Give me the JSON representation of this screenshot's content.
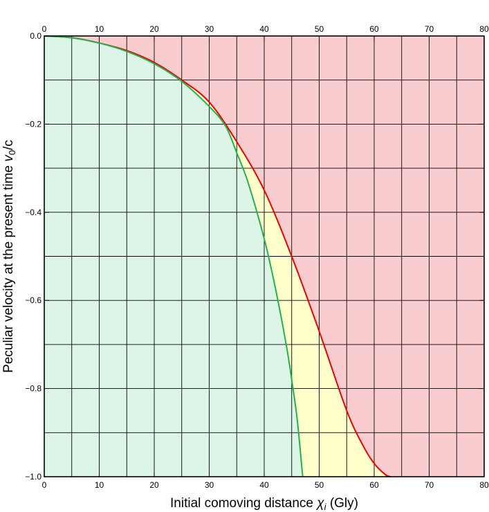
{
  "chart_data": {
    "type": "line",
    "xlabel": "Initial comoving distance χ_i (Gly)",
    "xlabel_parts": {
      "main": "Initial comoving distance ",
      "symbol": "χ",
      "subscript": "i",
      "unit": " (Gly)"
    },
    "ylabel": "Peculiar velocity at the present time v_0/c",
    "ylabel_parts": {
      "main": "Peculiar velocity at the present time ",
      "symbol": "v",
      "subscript": "0",
      "tail": "/c"
    },
    "xlim": [
      0,
      80
    ],
    "ylim": [
      -1.0,
      0.0
    ],
    "x_ticks": [
      0,
      10,
      20,
      30,
      40,
      50,
      60,
      70,
      80
    ],
    "x_tick_labels": [
      "0",
      "10",
      "20",
      "30",
      "40",
      "50",
      "60",
      "70",
      "80"
    ],
    "y_ticks": [
      0.0,
      -0.2,
      -0.4,
      -0.6,
      -0.8,
      -1.0
    ],
    "y_tick_labels": [
      "0.0",
      "−0.2",
      "−0.4",
      "−0.6",
      "−0.8",
      "−1.0"
    ],
    "grid": true,
    "x_grid_step": 5,
    "y_grid_step": 0.1,
    "regions": [
      {
        "name": "green-region",
        "color": "#dcf5e6"
      },
      {
        "name": "yellow-region",
        "color": "#ffffcc"
      },
      {
        "name": "red-region",
        "color": "#f9cdd0"
      }
    ],
    "series": [
      {
        "color": "#22b14c",
        "x": [
          0,
          5,
          10,
          15,
          20,
          25,
          30,
          33,
          35,
          37,
          40,
          42,
          44,
          45,
          46,
          47
        ],
        "y": [
          0,
          -0.004,
          -0.016,
          -0.035,
          -0.063,
          -0.103,
          -0.16,
          -0.205,
          -0.265,
          -0.33,
          -0.46,
          -0.57,
          -0.7,
          -0.78,
          -0.87,
          -1.0
        ]
      },
      {
        "color": "#ee0000",
        "x": [
          0,
          5,
          10,
          15,
          20,
          25,
          30,
          35,
          40,
          45,
          50,
          55,
          58,
          60,
          62,
          63
        ],
        "y": [
          0,
          -0.004,
          -0.016,
          -0.033,
          -0.06,
          -0.1,
          -0.15,
          -0.24,
          -0.35,
          -0.5,
          -0.67,
          -0.85,
          -0.93,
          -0.97,
          -0.995,
          -1.0
        ]
      }
    ]
  }
}
